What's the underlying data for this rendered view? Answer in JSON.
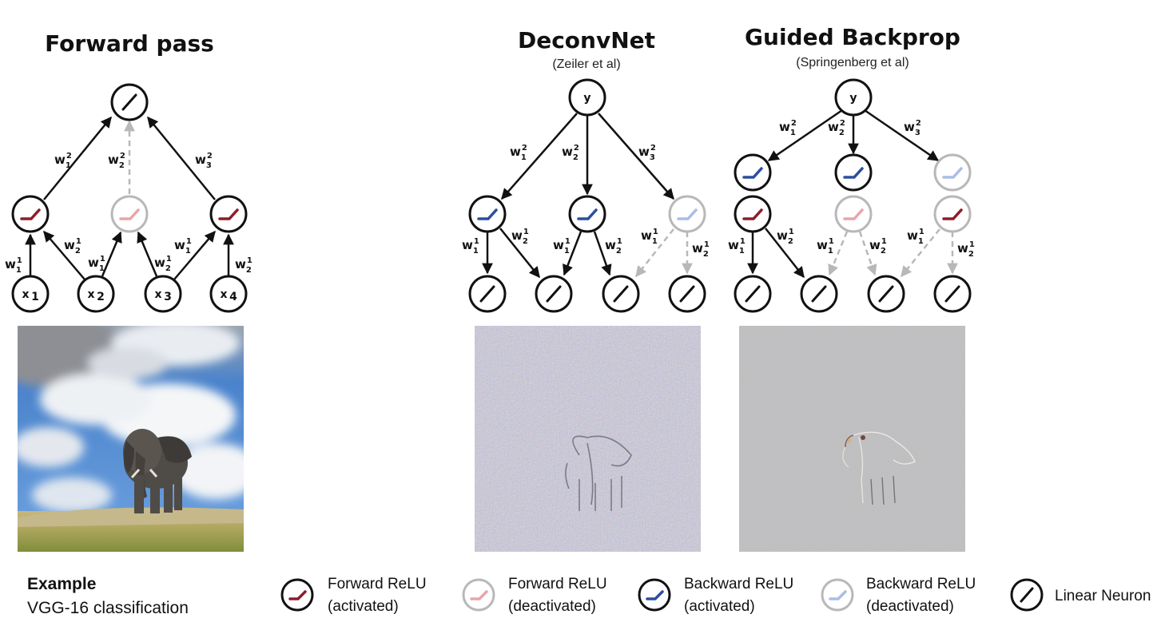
{
  "panels": {
    "forward": {
      "title": "Forward pass"
    },
    "deconvnet": {
      "title": "DeconvNet",
      "citation": "(Zeiler et al)"
    },
    "guided": {
      "title": "Guided Backprop",
      "citation": "(Springenberg et al)"
    }
  },
  "nodes": {
    "output_label": "y",
    "inputs": [
      "x",
      "x",
      "x",
      "x"
    ],
    "input_subscripts": [
      "1",
      "2",
      "3",
      "4"
    ]
  },
  "weights": {
    "w_letter": "w",
    "upper": {
      "w1": [
        "1",
        "2"
      ],
      "w2": [
        "2",
        "2"
      ],
      "w3": [
        "3",
        "2"
      ]
    },
    "lower": {
      "w1": [
        "1",
        "1"
      ],
      "w2": [
        "2",
        "1"
      ]
    }
  },
  "example": {
    "title": "Example",
    "subtitle": "VGG-16 classification"
  },
  "legend": [
    {
      "line1": "Forward ReLU",
      "line2": "(activated)"
    },
    {
      "line1": "Forward ReLU",
      "line2": "(deactivated)"
    },
    {
      "line1": "Backward ReLU",
      "line2": "(activated)"
    },
    {
      "line1": "Backward ReLU",
      "line2": "(deactivated)"
    },
    {
      "line1": "Linear Neuron",
      "line2": ""
    }
  ],
  "colors": {
    "active_edge": "#111111",
    "inactive_edge": "#b8b8b8",
    "forward_relu": "#8e1d2b",
    "forward_relu_off": "#e8a5aa",
    "backward_relu": "#2b4e9e",
    "backward_relu_off": "#a9bde8"
  }
}
